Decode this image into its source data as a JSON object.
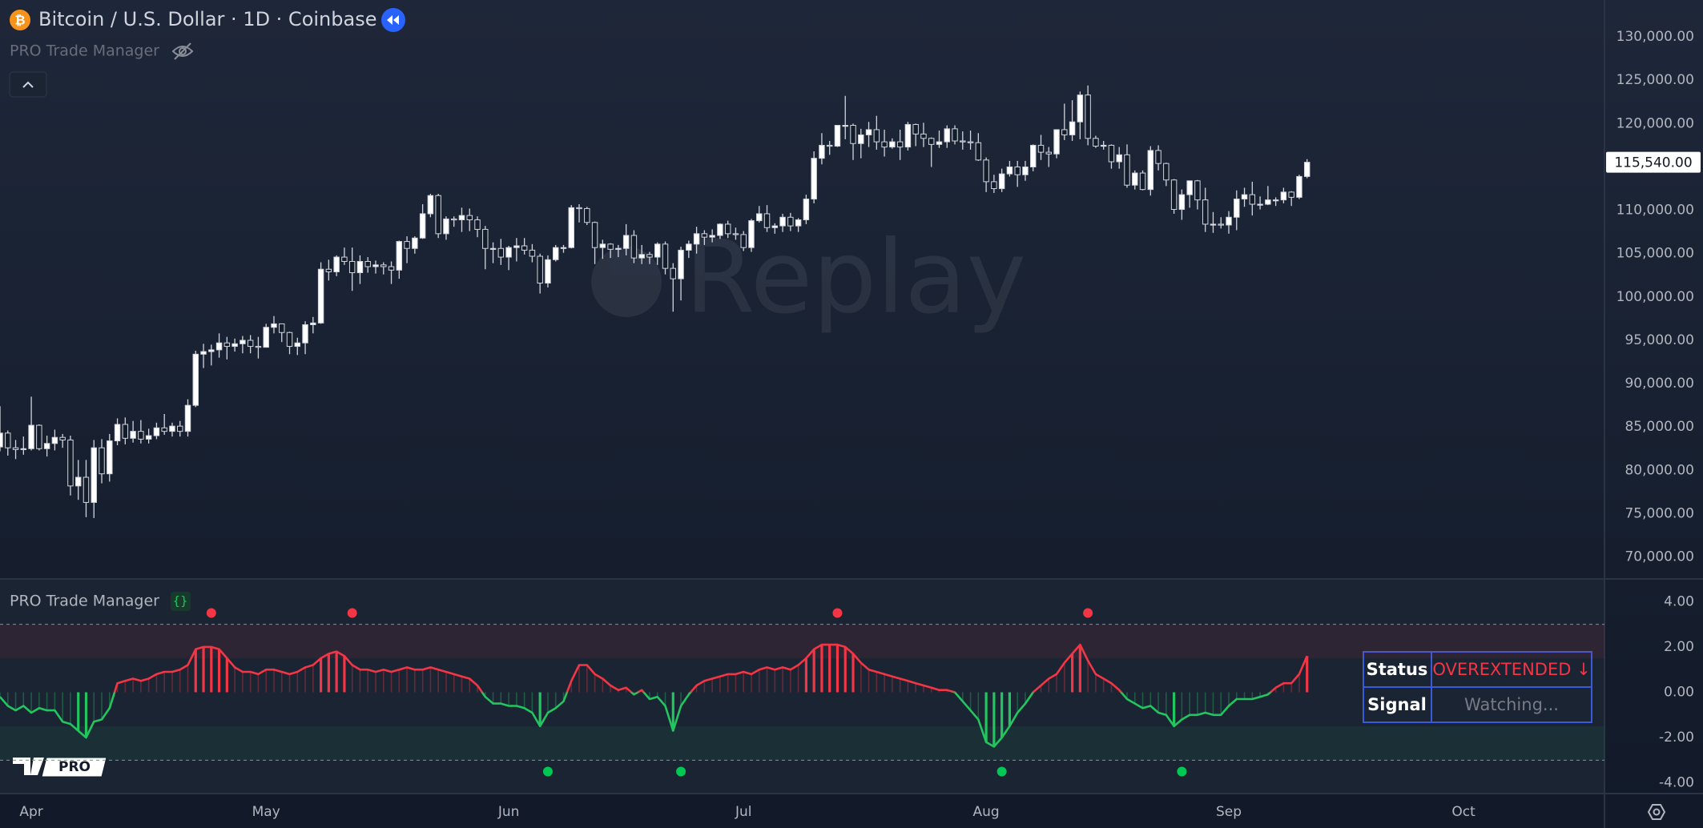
{
  "header": {
    "title": "Bitcoin / U.S. Dollar · 1D · Coinbase",
    "indicator": "PRO Trade Manager"
  },
  "watermark": "Replay",
  "logo": "PRO",
  "table": {
    "rows": [
      [
        "Status",
        "OVEREXTENDED ↓"
      ],
      [
        "Signal",
        "Watching..."
      ]
    ]
  },
  "chart_data": [
    {
      "type": "candlestick",
      "up_color": "#ffffff",
      "down_color": "#131c2b",
      "wick_color": "#d1d4dc",
      "xlim": [
        0,
        205
      ],
      "xticks": [
        {
          "value": 4,
          "label": "Apr"
        },
        {
          "value": 34,
          "label": "May"
        },
        {
          "value": 65,
          "label": "Jun"
        },
        {
          "value": 95,
          "label": "Jul"
        },
        {
          "value": 126,
          "label": "Aug"
        },
        {
          "value": 157,
          "label": "Sep"
        },
        {
          "value": 187,
          "label": "Oct"
        }
      ],
      "ylim": [
        67470,
        134260
      ],
      "yticks": [
        {
          "value": 70000,
          "label": "70,000.00"
        },
        {
          "value": 75000,
          "label": "75,000.00"
        },
        {
          "value": 80000,
          "label": "80,000.00"
        },
        {
          "value": 85000,
          "label": "85,000.00"
        },
        {
          "value": 90000,
          "label": "90,000.00"
        },
        {
          "value": 95000,
          "label": "95,000.00"
        },
        {
          "value": 100000,
          "label": "100,000.00"
        },
        {
          "value": 105000,
          "label": "105,000.00"
        },
        {
          "value": 110000,
          "label": "110,000.00"
        },
        {
          "value": 115000,
          "label": "115,000.00"
        },
        {
          "value": 120000,
          "label": "120,000.00"
        },
        {
          "value": 125000,
          "label": "125,000.00"
        },
        {
          "value": 130000,
          "label": "130,000.00"
        }
      ],
      "last_price": {
        "value": 115540,
        "label": "115,540.00"
      },
      "open": [
        82700,
        84300,
        82600,
        82400,
        82500,
        85200,
        82500,
        83100,
        83800,
        83500,
        78200,
        79200,
        76300,
        82600,
        79600,
        83400,
        85300,
        83700,
        84500,
        83600,
        84000,
        84900,
        84500,
        85100,
        84500,
        87500,
        93400,
        93700,
        93900,
        94700,
        94300,
        94600,
        95000,
        94300,
        94200,
        96500,
        96900,
        95900,
        94300,
        94700,
        96800,
        97000,
        103200,
        102900,
        104600,
        104100,
        102800,
        104100,
        103500,
        103700,
        103500,
        103100,
        106400,
        105600,
        106800,
        109600,
        111700,
        107300,
        109000,
        108900,
        109400,
        108900,
        107800,
        105600,
        105600,
        104600,
        105700,
        105900,
        105400,
        104700,
        101600,
        104300,
        105700,
        105700,
        110300,
        110200,
        108600,
        105700,
        106100,
        105500,
        105600,
        107100,
        104500,
        104900,
        104600,
        106100,
        103300,
        102100,
        105400,
        106100,
        107300,
        106900,
        107100,
        108400,
        107300,
        107200,
        105700,
        108800,
        109600,
        108000,
        108200,
        109200,
        108200,
        108900,
        111300,
        116000,
        117500,
        117400,
        119800,
        119800,
        117700,
        118700,
        119300,
        117900,
        117300,
        117900,
        117300,
        119900,
        118800,
        118300,
        117600,
        117900,
        119400,
        118000,
        117900,
        117800,
        115800,
        113300,
        112500,
        114200,
        115000,
        114100,
        115000,
        117500,
        116700,
        116500,
        119300,
        118700,
        120200,
        123300,
        118300,
        117400,
        117500,
        115600,
        116400,
        112900,
        114300,
        112400,
        116900,
        115400,
        113500,
        110100,
        111800,
        113400,
        111200,
        108400,
        108400,
        108300,
        109200,
        111300,
        111800,
        110700,
        110700,
        111200,
        111200,
        112100,
        111500,
        113900
      ],
      "high": [
        87400,
        84600,
        83500,
        83900,
        88500,
        85300,
        84000,
        84700,
        84200,
        84000,
        81200,
        81200,
        83500,
        83600,
        84200,
        86000,
        86100,
        85700,
        85800,
        84800,
        85500,
        86500,
        85500,
        85700,
        88200,
        93800,
        94600,
        94500,
        95800,
        95400,
        95200,
        95500,
        95600,
        95400,
        96900,
        97800,
        96900,
        96000,
        95300,
        97200,
        97700,
        104000,
        104300,
        104800,
        105700,
        105700,
        104800,
        104600,
        104200,
        104000,
        104100,
        106500,
        107000,
        107000,
        110700,
        111900,
        111900,
        109300,
        109300,
        110300,
        110200,
        109300,
        108200,
        106300,
        106700,
        105900,
        106800,
        106800,
        106100,
        105000,
        104800,
        106000,
        106000,
        110600,
        110700,
        110400,
        108700,
        106600,
        106200,
        106000,
        108400,
        107700,
        106000,
        105200,
        106300,
        106400,
        103900,
        105800,
        106500,
        108100,
        107700,
        107800,
        108500,
        108800,
        108000,
        107600,
        109000,
        110500,
        110600,
        108500,
        109600,
        109700,
        109100,
        111800,
        116800,
        118900,
        118000,
        119800,
        123200,
        120000,
        119400,
        120200,
        120900,
        119300,
        118300,
        119300,
        120200,
        120000,
        120100,
        118400,
        119200,
        119800,
        119800,
        119100,
        119200,
        118900,
        116100,
        114100,
        114800,
        115700,
        115700,
        115700,
        117600,
        118700,
        117300,
        119300,
        122300,
        122700,
        123700,
        124400,
        118600,
        118000,
        117600,
        117300,
        117600,
        114600,
        114600,
        117400,
        117500,
        115500,
        113600,
        112400,
        113400,
        113500,
        112600,
        109800,
        109200,
        109900,
        112300,
        112600,
        113300,
        111600,
        112800,
        111500,
        112600,
        112200,
        114100,
        115900
      ],
      "low": [
        82200,
        81700,
        81300,
        81800,
        82300,
        82300,
        81600,
        82300,
        82600,
        77100,
        76600,
        74600,
        74500,
        78500,
        78700,
        82900,
        83000,
        83200,
        83100,
        83100,
        83600,
        84100,
        83900,
        83900,
        83900,
        87300,
        91800,
        92100,
        93000,
        92800,
        93700,
        93500,
        93500,
        92900,
        94200,
        95800,
        94800,
        93400,
        93300,
        93400,
        95800,
        96900,
        101900,
        102400,
        103700,
        100700,
        101500,
        102800,
        102700,
        102600,
        101500,
        102100,
        103900,
        105000,
        106700,
        109200,
        106800,
        106600,
        108100,
        107500,
        107600,
        106900,
        103200,
        103900,
        103700,
        103100,
        104100,
        104900,
        104000,
        100400,
        101100,
        104100,
        105100,
        105600,
        108600,
        108300,
        103800,
        104400,
        104500,
        104600,
        104800,
        103900,
        103800,
        103800,
        103700,
        102600,
        98300,
        99600,
        104500,
        105000,
        106000,
        106300,
        106700,
        106800,
        106600,
        105300,
        105200,
        108600,
        107500,
        107300,
        107500,
        107600,
        107500,
        108400,
        110800,
        115300,
        116400,
        117300,
        118200,
        115800,
        116000,
        117300,
        117000,
        116200,
        117100,
        115800,
        116900,
        117400,
        117300,
        115000,
        117200,
        117200,
        117600,
        117000,
        117000,
        115700,
        112100,
        112000,
        112100,
        113900,
        112700,
        113400,
        114500,
        115800,
        115000,
        116000,
        118100,
        118000,
        118200,
        117500,
        117200,
        117000,
        114800,
        114800,
        112600,
        112400,
        112300,
        111700,
        114600,
        112800,
        109600,
        108900,
        110300,
        110100,
        107500,
        107400,
        107900,
        107300,
        107700,
        110400,
        109400,
        110100,
        110600,
        110500,
        110800,
        110500,
        111300,
        113700
      ],
      "close": [
        84300,
        82600,
        82400,
        82500,
        85200,
        82500,
        83100,
        83800,
        83500,
        78200,
        79200,
        76300,
        82600,
        79600,
        83400,
        85300,
        83700,
        84500,
        83600,
        84000,
        84900,
        84500,
        85100,
        84500,
        87500,
        93400,
        93700,
        93900,
        94700,
        94300,
        94600,
        95000,
        94300,
        94200,
        96500,
        96900,
        95900,
        94300,
        94700,
        96800,
        97000,
        103200,
        102900,
        104600,
        104100,
        102800,
        104100,
        103500,
        103700,
        103500,
        103100,
        106400,
        105600,
        106800,
        109600,
        111700,
        107300,
        109000,
        108900,
        109400,
        108900,
        107800,
        105600,
        105600,
        104600,
        105700,
        105900,
        105400,
        104700,
        101600,
        104300,
        105700,
        105700,
        110300,
        110200,
        108600,
        105700,
        106100,
        105500,
        105600,
        107100,
        104500,
        104900,
        104600,
        106100,
        103300,
        102100,
        105400,
        106100,
        107300,
        106900,
        107100,
        108400,
        107300,
        107200,
        105700,
        108800,
        109600,
        108000,
        108200,
        109200,
        108200,
        108900,
        111300,
        116000,
        117500,
        117400,
        119800,
        119800,
        117700,
        118700,
        119300,
        117900,
        117300,
        117900,
        117300,
        119900,
        118800,
        118300,
        117600,
        117900,
        119400,
        118000,
        117900,
        117800,
        115800,
        113300,
        112500,
        114200,
        115000,
        114100,
        115000,
        117500,
        116700,
        116500,
        119300,
        118700,
        120200,
        123300,
        118300,
        117400,
        117500,
        115600,
        116400,
        112900,
        114300,
        112400,
        116900,
        115400,
        113500,
        110100,
        111800,
        113400,
        111200,
        108400,
        108400,
        108300,
        109200,
        111300,
        111800,
        110700,
        110700,
        111200,
        111200,
        112100,
        111500,
        113900,
        115540
      ]
    },
    {
      "type": "oscillator",
      "up_color": "#f23645",
      "down_color": "#22c55e",
      "xlim": [
        0,
        205
      ],
      "ylim": [
        -4.47,
        5.0
      ],
      "yticks": [
        {
          "value": 4,
          "label": "4.00"
        },
        {
          "value": 2,
          "label": "2.00"
        },
        {
          "value": 0,
          "label": "0.00"
        },
        {
          "value": -2,
          "label": "-2.00"
        },
        {
          "value": -4,
          "label": "-4.00"
        }
      ],
      "upper_zone": [
        1.5,
        3
      ],
      "lower_zone": [
        -3,
        -1.5
      ],
      "levels": [
        3,
        -3
      ],
      "values": [
        -0.2,
        -0.6,
        -0.8,
        -0.6,
        -0.9,
        -0.7,
        -0.8,
        -0.8,
        -1.3,
        -1.4,
        -1.7,
        -2.0,
        -1.3,
        -1.2,
        -0.7,
        0.4,
        0.5,
        0.6,
        0.5,
        0.6,
        0.8,
        0.9,
        0.9,
        1.0,
        1.2,
        1.9,
        2.0,
        2.0,
        1.9,
        1.5,
        1.1,
        0.9,
        0.9,
        0.8,
        1.0,
        1.0,
        0.9,
        0.8,
        0.9,
        1.1,
        1.2,
        1.5,
        1.7,
        1.8,
        1.6,
        1.2,
        1.0,
        1.0,
        0.9,
        1.0,
        0.9,
        1.0,
        1.1,
        1.0,
        1.0,
        1.1,
        1.0,
        0.9,
        0.8,
        0.7,
        0.6,
        0.3,
        -0.2,
        -0.5,
        -0.5,
        -0.6,
        -0.6,
        -0.7,
        -0.9,
        -1.5,
        -0.9,
        -0.7,
        -0.4,
        0.5,
        1.2,
        1.2,
        0.8,
        0.6,
        0.3,
        0.1,
        0.2,
        -0.1,
        0.1,
        -0.3,
        -0.2,
        -0.6,
        -1.7,
        -0.6,
        -0.1,
        0.3,
        0.5,
        0.6,
        0.7,
        0.8,
        0.8,
        0.9,
        0.8,
        1.0,
        1.1,
        1.0,
        1.1,
        1.0,
        1.2,
        1.5,
        1.9,
        2.1,
        2.1,
        2.1,
        2.0,
        1.7,
        1.3,
        1.0,
        0.9,
        0.8,
        0.7,
        0.6,
        0.5,
        0.4,
        0.3,
        0.2,
        0.1,
        0.1,
        0.0,
        -0.4,
        -0.8,
        -1.2,
        -2.2,
        -2.4,
        -2.0,
        -1.5,
        -0.9,
        -0.5,
        0.0,
        0.3,
        0.6,
        0.8,
        1.3,
        1.7,
        2.1,
        1.4,
        0.8,
        0.6,
        0.4,
        0.1,
        -0.3,
        -0.5,
        -0.7,
        -0.6,
        -0.9,
        -1.0,
        -1.5,
        -1.2,
        -1.0,
        -1.0,
        -0.9,
        -1.0,
        -1.0,
        -0.6,
        -0.3,
        -0.3,
        -0.3,
        -0.2,
        -0.1,
        0.2,
        0.4,
        0.4,
        0.8,
        1.6
      ],
      "markers": [
        {
          "color": "#f23645",
          "x": [
            27,
            45,
            107,
            139
          ],
          "y": [
            3.5,
            3.5,
            3.5,
            3.5
          ]
        },
        {
          "color": "#00c853",
          "x": [
            70,
            87,
            128,
            151
          ],
          "y": [
            -3.5,
            -3.5,
            -3.5,
            -3.5
          ]
        }
      ]
    }
  ]
}
